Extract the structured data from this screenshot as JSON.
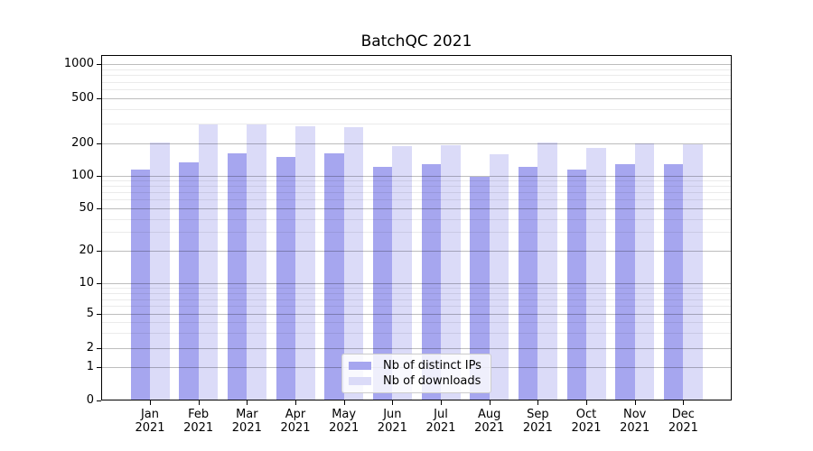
{
  "title": "BatchQC 2021",
  "chart_data": {
    "type": "bar",
    "title": "BatchQC 2021",
    "categories": [
      "Jan 2021",
      "Feb 2021",
      "Mar 2021",
      "Apr 2021",
      "May 2021",
      "Jun 2021",
      "Jul 2021",
      "Aug 2021",
      "Sep 2021",
      "Oct 2021",
      "Nov 2021",
      "Dec 2021"
    ],
    "series": [
      {
        "name": "Nb of distinct IPs",
        "color": "#a6a6ef",
        "values": [
          113,
          133,
          161,
          150,
          161,
          121,
          128,
          97,
          122,
          115,
          127,
          129
        ]
      },
      {
        "name": "Nb of downloads",
        "color": "#dbdbf8",
        "values": [
          204,
          294,
          297,
          286,
          278,
          190,
          194,
          160,
          205,
          183,
          201,
          198
        ]
      }
    ],
    "yscale": "symlog",
    "yticks": [
      0,
      1,
      2,
      5,
      10,
      20,
      50,
      100,
      200,
      500,
      1000
    ],
    "ylim": [
      0,
      1000
    ],
    "xlabel": "",
    "ylabel": "",
    "grid": true,
    "legend_position": "lower center",
    "colors": {
      "bar_distinct_ips": "#a6a6ef",
      "bar_downloads": "#dbdbf8",
      "grid_major": "#bdbdbd",
      "grid_minor": "#ececec",
      "spine": "#000000",
      "text": "#000000"
    }
  }
}
